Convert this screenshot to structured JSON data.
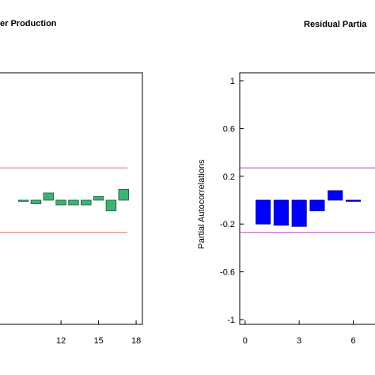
{
  "chart_data": [
    {
      "type": "bar",
      "title": "er Production",
      "xlabel": "",
      "ylabel": "",
      "x_ticks": [
        "12",
        "15",
        "18"
      ],
      "xlim": [
        7,
        18.5
      ],
      "ylim": [
        -1,
        1
      ],
      "grid": false,
      "bar_color": "#3cb371",
      "bar_edge_color": "#1e5a3a",
      "limit_color": "#e08a8a",
      "limit_lines": [
        0.27,
        -0.27
      ],
      "x": [
        9,
        10,
        11,
        12,
        13,
        14,
        15,
        16,
        17
      ],
      "values": [
        0.0,
        -0.03,
        0.06,
        -0.04,
        -0.04,
        -0.04,
        0.03,
        -0.09,
        0.09
      ]
    },
    {
      "type": "bar",
      "title": "Residual Partia",
      "xlabel": "",
      "ylabel": "Partial Autocorrelations",
      "y_ticks": [
        "1",
        "0.6",
        "0.2",
        "-0.2",
        "-0.6",
        "-1"
      ],
      "x_ticks": [
        "0",
        "3",
        "6"
      ],
      "xlim": [
        -0.3,
        7.6
      ],
      "ylim": [
        -1,
        1
      ],
      "grid": false,
      "bar_color": "#0000ff",
      "bar_edge_color": "#000080",
      "limit_color": "#cc66cc",
      "limit_lines": [
        0.27,
        -0.27
      ],
      "x": [
        1,
        2,
        3,
        4,
        5,
        6
      ],
      "values": [
        -0.2,
        -0.21,
        -0.22,
        -0.09,
        0.08,
        -0.01
      ]
    }
  ]
}
